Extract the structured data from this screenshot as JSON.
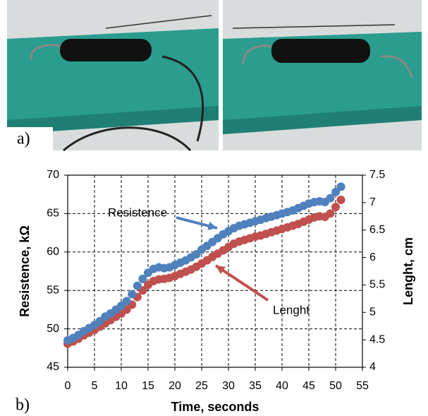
{
  "panel_labels": [
    "a)",
    "b)"
  ],
  "chart_data": {
    "type": "scatter",
    "xlabel": "Time, seconds",
    "ylabel": "Resistence, kΩ",
    "y2label": "Lenght, cm",
    "x": [
      0,
      1,
      2,
      3,
      4,
      5,
      6,
      7,
      8,
      9,
      10,
      11,
      12,
      13,
      14,
      15,
      16,
      17,
      18,
      19,
      20,
      21,
      22,
      23,
      24,
      25,
      26,
      27,
      28,
      29,
      30,
      31,
      32,
      33,
      34,
      35,
      36,
      37,
      38,
      39,
      40,
      41,
      42,
      43,
      44,
      45,
      46,
      47,
      48,
      49,
      50,
      51
    ],
    "series": [
      {
        "name": "Lenght",
        "color": "#c0504d",
        "axis": "y2",
        "values": [
          4.43,
          4.47,
          4.52,
          4.58,
          4.63,
          4.68,
          4.74,
          4.8,
          4.86,
          4.92,
          4.98,
          5.05,
          5.14,
          5.28,
          5.4,
          5.5,
          5.57,
          5.6,
          5.61,
          5.63,
          5.66,
          5.7,
          5.74,
          5.78,
          5.83,
          5.89,
          5.95,
          6.01,
          6.07,
          6.13,
          6.19,
          6.25,
          6.29,
          6.32,
          6.35,
          6.38,
          6.4,
          6.43,
          6.46,
          6.49,
          6.52,
          6.55,
          6.58,
          6.61,
          6.65,
          6.69,
          6.73,
          6.75,
          6.74,
          6.8,
          6.92,
          7.05
        ]
      },
      {
        "name": "Resistence",
        "color": "#4f81bd",
        "values": [
          48.5,
          48.8,
          49.2,
          49.7,
          50.1,
          50.5,
          51,
          51.6,
          52,
          52.5,
          53,
          53.6,
          54.5,
          55.6,
          56.5,
          57.3,
          57.8,
          58,
          57.9,
          58,
          58.3,
          58.6,
          58.9,
          59.3,
          59.7,
          60.3,
          60.8,
          61.3,
          61.8,
          62.3,
          62.7,
          63.1,
          63.4,
          63.6,
          63.8,
          64,
          64.2,
          64.4,
          64.6,
          64.8,
          65,
          65.2,
          65.4,
          65.7,
          66,
          66.3,
          66.5,
          66.6,
          66.5,
          67,
          67.8,
          68.5
        ]
      }
    ],
    "xlim": [
      0,
      55
    ],
    "xticks": [
      0,
      5,
      10,
      15,
      20,
      25,
      30,
      35,
      40,
      45,
      50,
      55
    ],
    "ylim": [
      45,
      70
    ],
    "yticks": [
      45,
      50,
      55,
      60,
      65,
      70
    ],
    "y2lim": [
      4,
      7.5
    ],
    "y2ticks": [
      4,
      4.5,
      5,
      5.5,
      6,
      6.5,
      7,
      7.5
    ],
    "grid": true
  }
}
